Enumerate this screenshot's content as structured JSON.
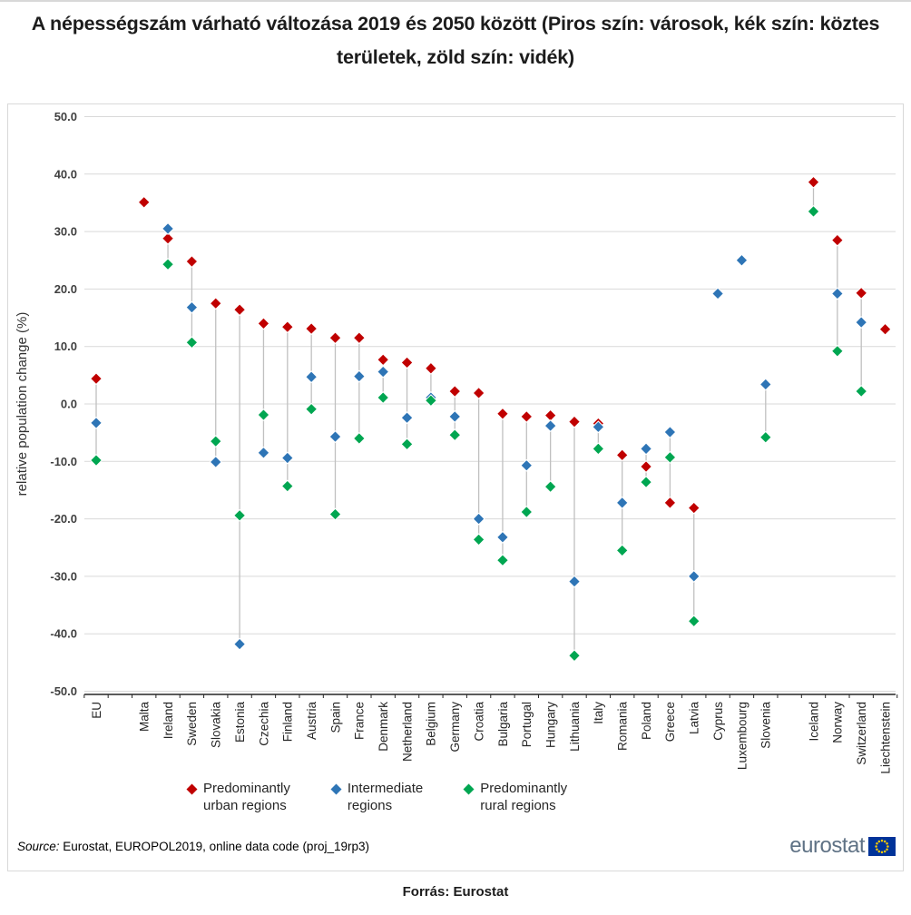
{
  "page": {
    "title": "A népességszám várható változása 2019 és 2050 között (Piros szín: városok, kék szín: köztes területek, zöld szín: vidék)",
    "footer": "Forrás: Eurostat"
  },
  "figure": {
    "source_prefix": "Source:",
    "source_rest": " Eurostat, EUROPOL2019, online data code (proj_19rp3)",
    "logo_text": "eurostat"
  },
  "chart_data": {
    "type": "scatter",
    "marker": "diamond",
    "ylabel": "relative population change (%)",
    "ylim": [
      -50,
      50
    ],
    "ytick_step": 10,
    "ytick_labels": [
      "50.0",
      "40.0",
      "30.0",
      "20.0",
      "10.0",
      "0.0",
      "-10.0",
      "-20.0",
      "-30.0",
      "-40.0",
      "-50.0"
    ],
    "grid": true,
    "legend_position": "bottom",
    "colors": {
      "grid": "#d9d9d9",
      "axis": "#262626",
      "connector": "#c0c0c0",
      "tick_text": "#404040"
    },
    "categories": [
      "EU",
      "",
      "Malta",
      "Ireland",
      "Sweden",
      "Slovakia",
      "Estonia",
      "Czechia",
      "Finland",
      "Austria",
      "Spain",
      "France",
      "Denmark",
      "Netherland",
      "Belgium",
      "Germany",
      "Croatia",
      "Bulgaria",
      "Portugal",
      "Hungary",
      "Lithuania",
      "Italy",
      "Romania",
      "Poland",
      "Greece",
      "Latvia",
      "Cyprus",
      "Luxembourg",
      "Slovenia",
      "",
      "Iceland",
      "Norway",
      "Switzerland",
      "Liechtenstein"
    ],
    "series": [
      {
        "name": "Predominantly urban regions",
        "label_lines": [
          "Predominantly",
          "urban regions"
        ],
        "color": "#c00000",
        "values": [
          4.4,
          null,
          35.1,
          28.8,
          24.8,
          17.5,
          16.4,
          14.0,
          13.4,
          13.1,
          11.5,
          11.5,
          7.7,
          7.2,
          6.2,
          2.2,
          1.9,
          -1.7,
          -2.2,
          -2.0,
          -3.1,
          -3.4,
          -8.9,
          -10.9,
          -17.2,
          -18.1,
          null,
          null,
          null,
          null,
          38.6,
          28.5,
          19.3,
          13.0
        ]
      },
      {
        "name": "Intermediate regions",
        "label_lines": [
          "Intermediate",
          "regions"
        ],
        "color": "#2e75b6",
        "values": [
          -3.3,
          null,
          null,
          30.5,
          16.8,
          -10.1,
          -41.8,
          -8.5,
          -9.4,
          4.7,
          -5.7,
          4.8,
          5.6,
          -2.4,
          1.1,
          -2.2,
          -20.0,
          -23.2,
          -10.7,
          -3.8,
          -30.9,
          -4.0,
          -17.2,
          -7.8,
          -4.9,
          -30.0,
          19.2,
          25.0,
          3.4,
          null,
          null,
          19.2,
          14.2,
          null
        ]
      },
      {
        "name": "Predominantly rural regions",
        "label_lines": [
          "Predominantly",
          "rural regions"
        ],
        "color": "#00a651",
        "values": [
          -9.8,
          null,
          null,
          24.3,
          10.7,
          -6.5,
          -19.4,
          -1.9,
          -14.3,
          -0.9,
          -19.2,
          -6.0,
          1.1,
          -7.0,
          0.6,
          -5.4,
          -23.6,
          -27.2,
          -18.8,
          -14.4,
          -43.8,
          -7.8,
          -25.5,
          -13.6,
          -9.3,
          -37.8,
          null,
          null,
          -5.8,
          null,
          33.5,
          9.2,
          2.2,
          null
        ]
      }
    ]
  }
}
